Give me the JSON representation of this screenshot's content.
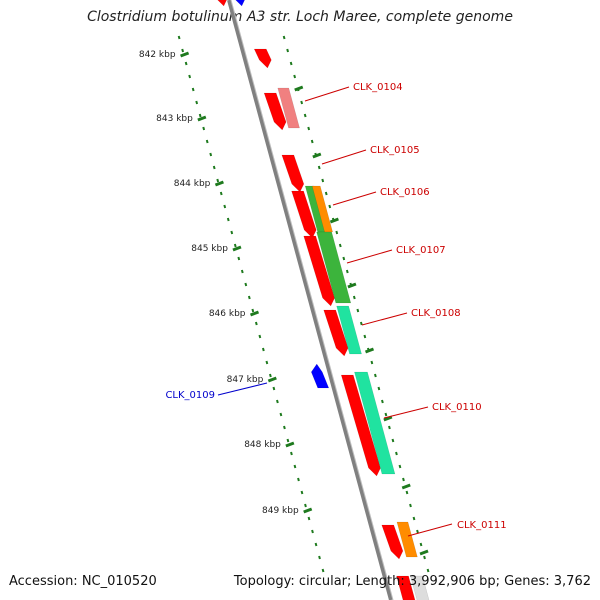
{
  "title": "Clostridium botulinum A3 str. Loch Maree, complete genome",
  "footer": {
    "accession": "Accession: NC_010520",
    "summary": "Topology: circular; Length: 3,992,906 bp; Genes: 3,762"
  },
  "colors": {
    "backbone": "#808080",
    "tick": "#1e7a1e",
    "red_gene": "#ff0000",
    "pink_gene": "#f08080",
    "blue_gene": "#0000ff",
    "green_gene": "#3cb43c",
    "orange_gene": "#ff8c00",
    "teal_gene": "#20e3a0",
    "red_label": "#cc0000",
    "blue_label": "#0000cc"
  },
  "chart_data": {
    "type": "genome_map",
    "tick_labels": [
      "842 kbp",
      "843 kbp",
      "844 kbp",
      "845 kbp",
      "846 kbp",
      "847 kbp",
      "848 kbp",
      "849 kbp"
    ],
    "gene_labels": [
      {
        "name": "CLK_0104",
        "color": "red"
      },
      {
        "name": "CLK_0105",
        "color": "red"
      },
      {
        "name": "CLK_0106",
        "color": "red"
      },
      {
        "name": "CLK_0107",
        "color": "red"
      },
      {
        "name": "CLK_0108",
        "color": "red"
      },
      {
        "name": "CLK_0109",
        "color": "blue"
      },
      {
        "name": "CLK_0110",
        "color": "red"
      },
      {
        "name": "CLK_0111",
        "color": "red"
      }
    ]
  }
}
